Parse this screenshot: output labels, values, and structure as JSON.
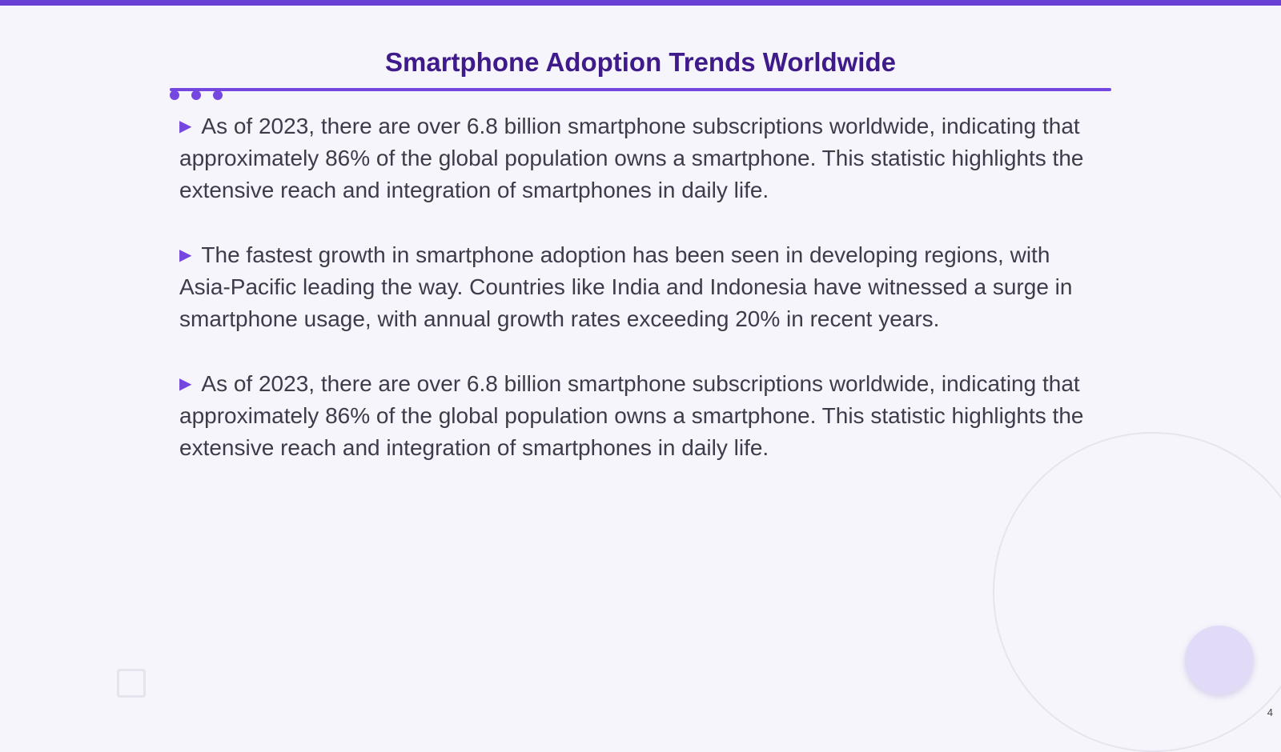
{
  "slide": {
    "title": "Smartphone Adoption Trends Worldwide",
    "page_number": "4",
    "accent_color": "#7447e0",
    "title_color": "#3f1a8a",
    "bullet_icon": "triangle-right-icon",
    "bullets": [
      "As of 2023, there are over 6.8 billion smartphone subscriptions worldwide, indicating that approximately 86% of the global population owns a smartphone. This statistic highlights the extensive reach and integration of smartphones in daily life.",
      "The fastest growth in smartphone adoption has been seen in developing regions, with Asia-Pacific leading the way. Countries like India and Indonesia have witnessed a surge in smartphone usage, with annual growth rates exceeding 20% in recent years.",
      "As of 2023, there are over 6.8 billion smartphone subscriptions worldwide, indicating that approximately 86% of the global population owns a smartphone. This statistic highlights the extensive reach and integration of smartphones in daily life."
    ]
  }
}
